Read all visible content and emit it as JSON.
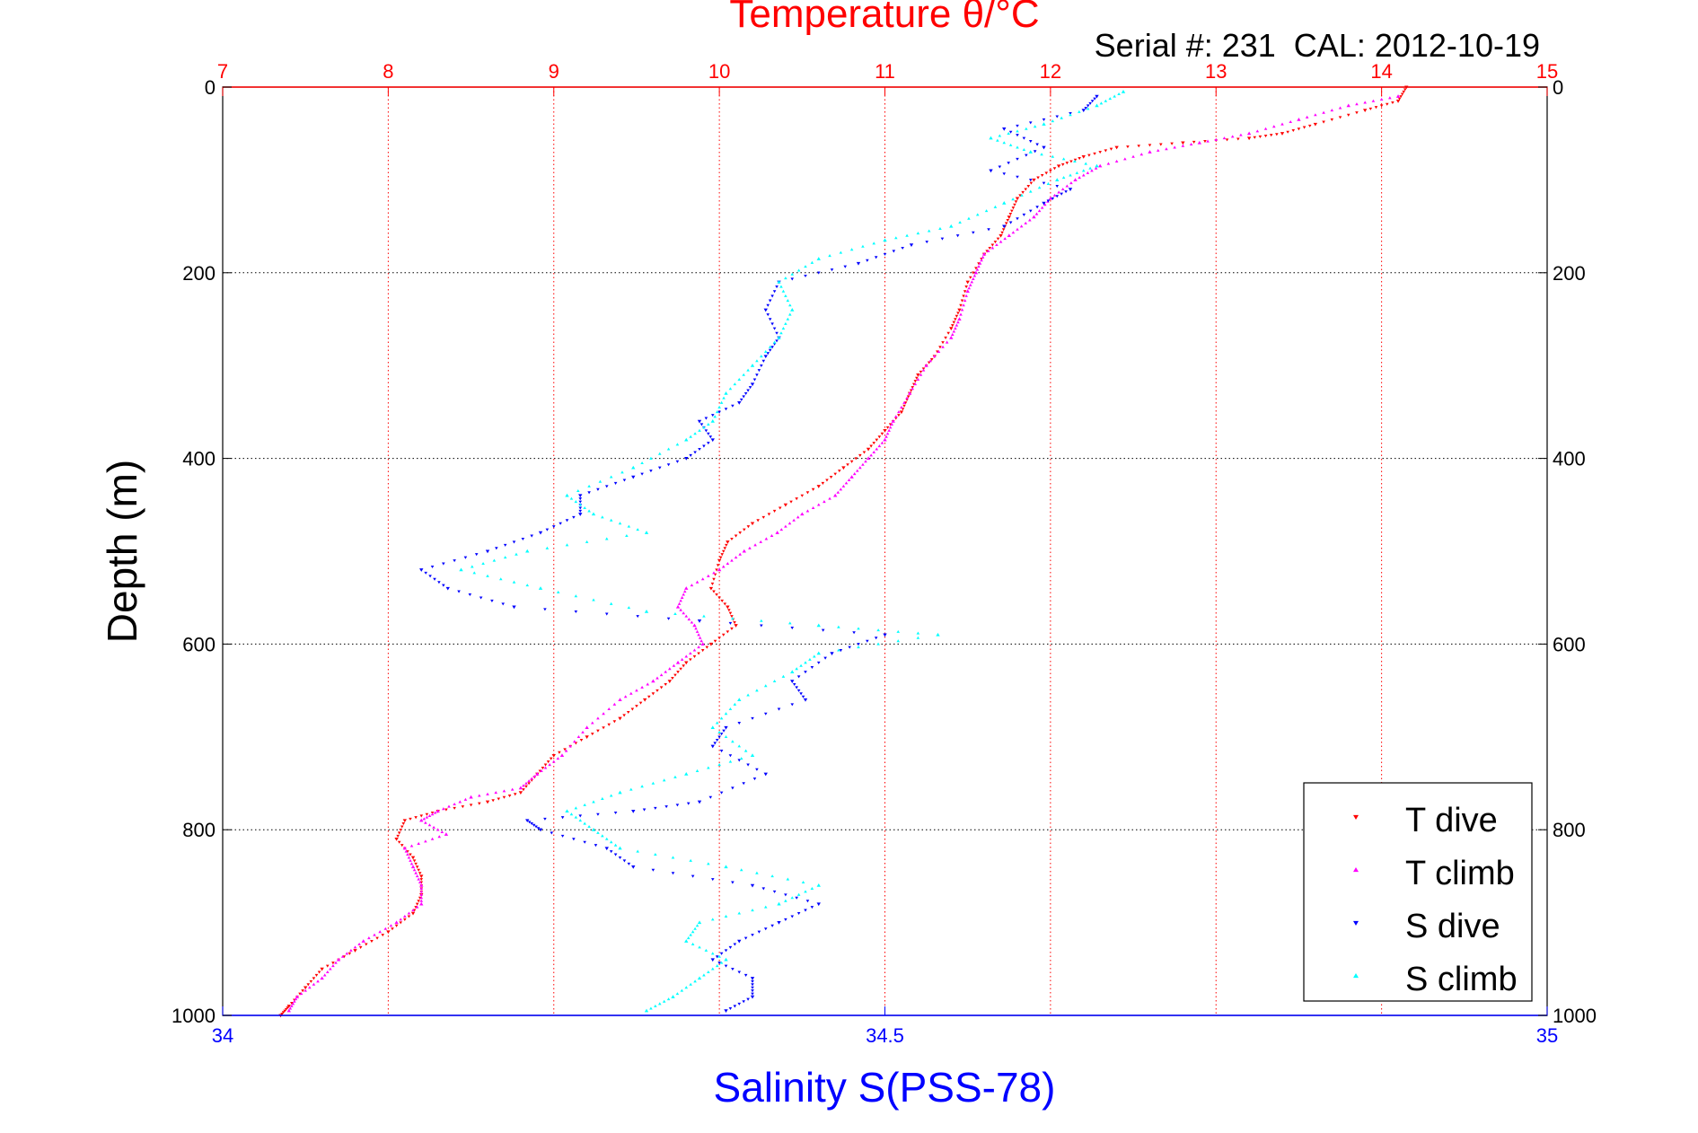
{
  "chart_data": {
    "type": "scatter",
    "title": "Temperature θ/°C",
    "subtitle": "Serial #: 231  CAL: 2012-10-19",
    "ylabel": "Depth (m)",
    "xlabel": "Salinity S(PSS-78)",
    "top_axis": {
      "label": "Temperature θ/°C",
      "range": [
        7,
        15
      ],
      "ticks": [
        "7",
        "8",
        "9",
        "10",
        "11",
        "12",
        "13",
        "14",
        "15"
      ],
      "color": "#ff0000"
    },
    "bottom_axis": {
      "label": "Salinity S(PSS-78)",
      "range": [
        34,
        35
      ],
      "ticks": [
        "34",
        "34.5",
        "35"
      ],
      "tick_values": [
        34,
        34.5,
        35
      ],
      "color": "#0000ff"
    },
    "y_axis": {
      "range": [
        0,
        1000
      ],
      "reversed": true,
      "ticks": [
        "0",
        "200",
        "400",
        "600",
        "800",
        "1000"
      ],
      "tick_values": [
        0,
        200,
        400,
        600,
        800,
        1000
      ]
    },
    "grid": true,
    "legend_position": "bottom-right",
    "series": [
      {
        "name": "T dive",
        "axis": "temperature",
        "color": "#ff0000",
        "marker": "triangle-down",
        "points": [
          [
            14.15,
            0
          ],
          [
            14.1,
            15
          ],
          [
            13.9,
            25
          ],
          [
            13.6,
            40
          ],
          [
            13.4,
            50
          ],
          [
            13.2,
            55
          ],
          [
            12.8,
            60
          ],
          [
            12.4,
            65
          ],
          [
            12.2,
            75
          ],
          [
            12.05,
            85
          ],
          [
            11.9,
            100
          ],
          [
            11.8,
            120
          ],
          [
            11.75,
            140
          ],
          [
            11.7,
            160
          ],
          [
            11.6,
            180
          ],
          [
            11.5,
            210
          ],
          [
            11.45,
            240
          ],
          [
            11.4,
            260
          ],
          [
            11.3,
            290
          ],
          [
            11.2,
            310
          ],
          [
            11.15,
            330
          ],
          [
            11.1,
            350
          ],
          [
            11.0,
            370
          ],
          [
            10.9,
            390
          ],
          [
            10.75,
            410
          ],
          [
            10.6,
            430
          ],
          [
            10.4,
            450
          ],
          [
            10.2,
            470
          ],
          [
            10.05,
            490
          ],
          [
            10.0,
            510
          ],
          [
            9.95,
            540
          ],
          [
            10.05,
            560
          ],
          [
            10.1,
            580
          ],
          [
            9.95,
            600
          ],
          [
            9.8,
            620
          ],
          [
            9.7,
            640
          ],
          [
            9.55,
            660
          ],
          [
            9.4,
            680
          ],
          [
            9.2,
            700
          ],
          [
            9.0,
            720
          ],
          [
            8.9,
            740
          ],
          [
            8.8,
            760
          ],
          [
            8.6,
            770
          ],
          [
            8.3,
            780
          ],
          [
            8.1,
            790
          ],
          [
            8.05,
            810
          ],
          [
            8.15,
            830
          ],
          [
            8.2,
            850
          ],
          [
            8.2,
            870
          ],
          [
            8.15,
            890
          ],
          [
            8.0,
            910
          ],
          [
            7.8,
            930
          ],
          [
            7.6,
            950
          ],
          [
            7.5,
            970
          ],
          [
            7.4,
            990
          ],
          [
            7.35,
            1000
          ]
        ]
      },
      {
        "name": "T climb",
        "axis": "temperature",
        "color": "#ff00ff",
        "marker": "triangle-up",
        "points": [
          [
            14.1,
            10
          ],
          [
            13.8,
            20
          ],
          [
            13.5,
            35
          ],
          [
            13.2,
            50
          ],
          [
            12.9,
            60
          ],
          [
            12.6,
            70
          ],
          [
            12.3,
            85
          ],
          [
            12.15,
            100
          ],
          [
            12.0,
            120
          ],
          [
            11.9,
            140
          ],
          [
            11.75,
            160
          ],
          [
            11.6,
            180
          ],
          [
            11.55,
            200
          ],
          [
            11.5,
            220
          ],
          [
            11.45,
            250
          ],
          [
            11.4,
            270
          ],
          [
            11.25,
            300
          ],
          [
            11.15,
            330
          ],
          [
            11.05,
            360
          ],
          [
            11.0,
            380
          ],
          [
            10.9,
            400
          ],
          [
            10.8,
            420
          ],
          [
            10.7,
            440
          ],
          [
            10.5,
            460
          ],
          [
            10.35,
            480
          ],
          [
            10.15,
            500
          ],
          [
            10.0,
            520
          ],
          [
            9.8,
            540
          ],
          [
            9.75,
            560
          ],
          [
            9.85,
            580
          ],
          [
            9.9,
            600
          ],
          [
            9.75,
            620
          ],
          [
            9.6,
            640
          ],
          [
            9.4,
            660
          ],
          [
            9.2,
            690
          ],
          [
            9.05,
            720
          ],
          [
            8.9,
            740
          ],
          [
            8.8,
            755
          ],
          [
            8.5,
            765
          ],
          [
            8.3,
            780
          ],
          [
            8.2,
            790
          ],
          [
            8.35,
            805
          ],
          [
            8.1,
            820
          ],
          [
            8.15,
            840
          ],
          [
            8.2,
            860
          ],
          [
            8.2,
            880
          ],
          [
            8.05,
            900
          ],
          [
            7.85,
            920
          ],
          [
            7.7,
            940
          ],
          [
            7.6,
            960
          ],
          [
            7.45,
            980
          ],
          [
            7.4,
            995
          ]
        ]
      },
      {
        "name": "S dive",
        "axis": "salinity",
        "color": "#0000ff",
        "marker": "triangle-down",
        "points": [
          [
            34.66,
            10
          ],
          [
            34.65,
            25
          ],
          [
            34.59,
            45
          ],
          [
            34.62,
            65
          ],
          [
            34.58,
            90
          ],
          [
            34.64,
            110
          ],
          [
            34.62,
            125
          ],
          [
            34.59,
            150
          ],
          [
            34.52,
            170
          ],
          [
            34.48,
            190
          ],
          [
            34.42,
            210
          ],
          [
            34.41,
            240
          ],
          [
            34.42,
            270
          ],
          [
            34.41,
            290
          ],
          [
            34.4,
            320
          ],
          [
            34.39,
            340
          ],
          [
            34.36,
            360
          ],
          [
            34.37,
            380
          ],
          [
            34.35,
            400
          ],
          [
            34.31,
            420
          ],
          [
            34.27,
            440
          ],
          [
            34.27,
            460
          ],
          [
            34.24,
            480
          ],
          [
            34.2,
            500
          ],
          [
            34.15,
            520
          ],
          [
            34.17,
            540
          ],
          [
            34.22,
            560
          ],
          [
            34.36,
            575
          ],
          [
            34.5,
            590
          ],
          [
            34.46,
            610
          ],
          [
            34.43,
            640
          ],
          [
            34.44,
            660
          ],
          [
            34.38,
            690
          ],
          [
            34.37,
            710
          ],
          [
            34.41,
            740
          ],
          [
            34.36,
            770
          ],
          [
            34.31,
            780
          ],
          [
            34.23,
            790
          ],
          [
            34.24,
            800
          ],
          [
            34.29,
            820
          ],
          [
            34.31,
            840
          ],
          [
            34.4,
            860
          ],
          [
            34.45,
            880
          ],
          [
            34.42,
            900
          ],
          [
            34.39,
            920
          ],
          [
            34.37,
            940
          ],
          [
            34.4,
            960
          ],
          [
            34.4,
            980
          ],
          [
            34.38,
            995
          ]
        ]
      },
      {
        "name": "S climb",
        "axis": "salinity",
        "color": "#00ffff",
        "marker": "triangle-up",
        "points": [
          [
            34.68,
            5
          ],
          [
            34.66,
            20
          ],
          [
            34.62,
            40
          ],
          [
            34.58,
            55
          ],
          [
            34.61,
            70
          ],
          [
            34.66,
            85
          ],
          [
            34.63,
            100
          ],
          [
            34.59,
            125
          ],
          [
            34.55,
            150
          ],
          [
            34.5,
            165
          ],
          [
            34.45,
            185
          ],
          [
            34.42,
            210
          ],
          [
            34.43,
            240
          ],
          [
            34.42,
            270
          ],
          [
            34.4,
            300
          ],
          [
            34.38,
            330
          ],
          [
            34.37,
            360
          ],
          [
            34.35,
            380
          ],
          [
            34.31,
            410
          ],
          [
            34.26,
            440
          ],
          [
            34.28,
            460
          ],
          [
            34.32,
            480
          ],
          [
            34.23,
            500
          ],
          [
            34.18,
            520
          ],
          [
            34.24,
            540
          ],
          [
            34.32,
            565
          ],
          [
            34.45,
            580
          ],
          [
            34.54,
            590
          ],
          [
            34.45,
            610
          ],
          [
            34.43,
            630
          ],
          [
            34.39,
            660
          ],
          [
            34.37,
            690
          ],
          [
            34.4,
            720
          ],
          [
            34.35,
            740
          ],
          [
            34.3,
            760
          ],
          [
            34.26,
            780
          ],
          [
            34.28,
            800
          ],
          [
            34.3,
            820
          ],
          [
            34.38,
            840
          ],
          [
            34.45,
            860
          ],
          [
            34.42,
            880
          ],
          [
            34.36,
            900
          ],
          [
            34.35,
            920
          ],
          [
            34.38,
            940
          ],
          [
            34.36,
            960
          ],
          [
            34.34,
            980
          ],
          [
            34.32,
            995
          ]
        ]
      }
    ]
  }
}
